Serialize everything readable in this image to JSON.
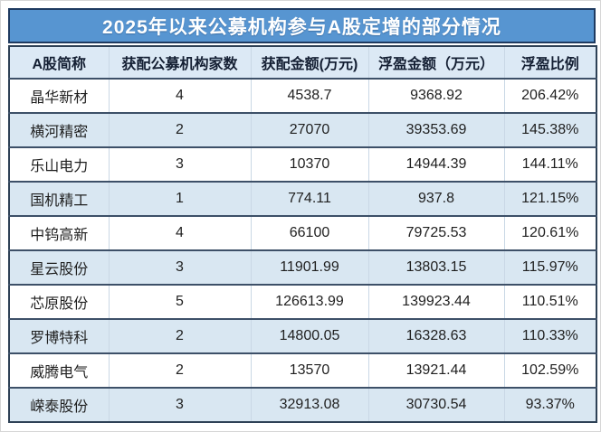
{
  "title": "2025年以来公募机构参与A股定增的部分情况",
  "colors": {
    "title_bar_bg": "#5795d1",
    "title_bar_border": "#1e3a60",
    "title_text": "#ffffff",
    "header_bg": "#dce9f5",
    "row_alt_bg": "#d9e7f2",
    "row_separator": "#3d5068",
    "column_divider": "#c9d7e5",
    "body_text": "#1f1f1f"
  },
  "table": {
    "headers": [
      "A股简称",
      "获配公募机构家数",
      "获配金额(万元)",
      "浮盈金额（万元）",
      "浮盈比例"
    ],
    "rows": [
      {
        "name": "晶华新材",
        "institutions": "4",
        "amount": "4538.7",
        "profit": "9368.92",
        "ratio": "206.42%"
      },
      {
        "name": "横河精密",
        "institutions": "2",
        "amount": "27070",
        "profit": "39353.69",
        "ratio": "145.38%"
      },
      {
        "name": "乐山电力",
        "institutions": "3",
        "amount": "10370",
        "profit": "14944.39",
        "ratio": "144.11%"
      },
      {
        "name": "国机精工",
        "institutions": "1",
        "amount": "774.11",
        "profit": "937.8",
        "ratio": "121.15%"
      },
      {
        "name": "中钨高新",
        "institutions": "4",
        "amount": "66100",
        "profit": "79725.53",
        "ratio": "120.61%"
      },
      {
        "name": "星云股份",
        "institutions": "3",
        "amount": "11901.99",
        "profit": "13803.15",
        "ratio": "115.97%"
      },
      {
        "name": "芯原股份",
        "institutions": "5",
        "amount": "126613.99",
        "profit": "139923.44",
        "ratio": "110.51%"
      },
      {
        "name": "罗博特科",
        "institutions": "2",
        "amount": "14800.05",
        "profit": "16328.63",
        "ratio": "110.33%"
      },
      {
        "name": "威腾电气",
        "institutions": "2",
        "amount": "13570",
        "profit": "13921.44",
        "ratio": "102.59%"
      },
      {
        "name": "嵘泰股份",
        "institutions": "3",
        "amount": "32913.08",
        "profit": "30730.54",
        "ratio": "93.37%"
      }
    ]
  },
  "chart_data": {
    "type": "table",
    "title": "2025年以来公募机构参与A股定增的部分情况",
    "columns": [
      "A股简称",
      "获配公募机构家数",
      "获配金额(万元)",
      "浮盈金额（万元）",
      "浮盈比例"
    ],
    "rows": [
      [
        "晶华新材",
        4,
        4538.7,
        9368.92,
        "206.42%"
      ],
      [
        "横河精密",
        2,
        27070,
        39353.69,
        "145.38%"
      ],
      [
        "乐山电力",
        3,
        10370,
        14944.39,
        "144.11%"
      ],
      [
        "国机精工",
        1,
        774.11,
        937.8,
        "121.15%"
      ],
      [
        "中钨高新",
        4,
        66100,
        79725.53,
        "120.61%"
      ],
      [
        "星云股份",
        3,
        11901.99,
        13803.15,
        "115.97%"
      ],
      [
        "芯原股份",
        5,
        126613.99,
        139923.44,
        "110.51%"
      ],
      [
        "罗博特科",
        2,
        14800.05,
        16328.63,
        "110.33%"
      ],
      [
        "威腾电气",
        2,
        13570,
        13921.44,
        "102.59%"
      ],
      [
        "嵘泰股份",
        3,
        32913.08,
        30730.54,
        "93.37%"
      ]
    ],
    "layout": {
      "header_row": true,
      "zebra_striping": true,
      "alignment": "center"
    }
  }
}
